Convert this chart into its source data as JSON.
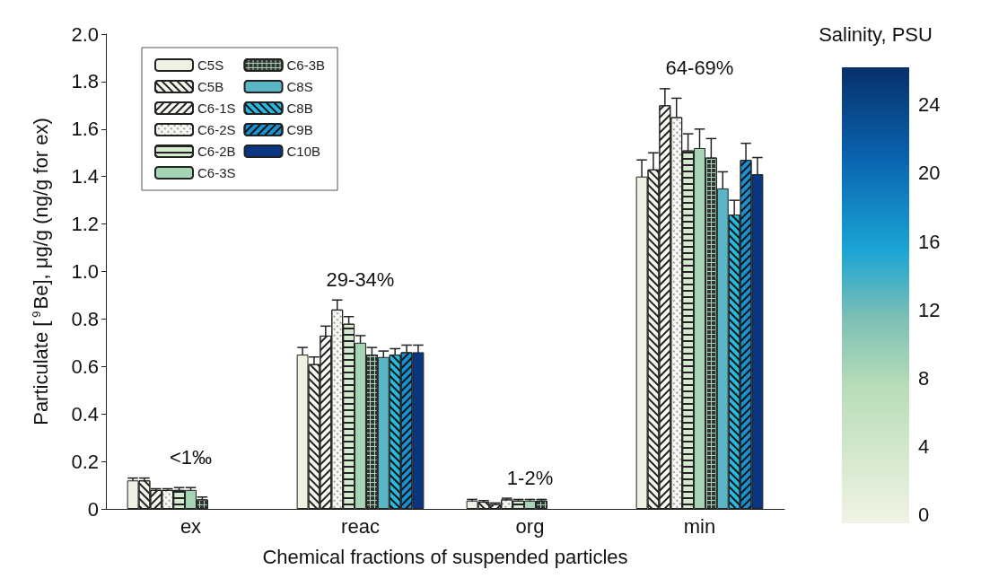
{
  "chart_data": {
    "type": "bar",
    "xlabel": "Chemical fractions of suspended particles",
    "ylabel": "Particulate [$^{9}$Be], μg/g (ng/g for ex)",
    "categories": [
      "ex",
      "reac",
      "org",
      "min"
    ],
    "series": [
      {
        "name": "C5S",
        "color": "#eef2e2",
        "values": [
          0.12,
          0.65,
          0.035,
          1.4
        ],
        "errors": [
          0.01,
          0.03,
          0.005,
          0.07
        ]
      },
      {
        "name": "C5B",
        "color": "#f4f4ec",
        "values": [
          0.12,
          0.61,
          0.03,
          1.43
        ],
        "errors": [
          0.01,
          0.03,
          0.005,
          0.07
        ]
      },
      {
        "name": "C6-1S",
        "color": "#f8f8f4",
        "values": [
          0.08,
          0.73,
          0.02,
          1.7
        ],
        "errors": [
          0.005,
          0.04,
          0.005,
          0.07
        ]
      },
      {
        "name": "C6-2S",
        "color": "#f8f8f4",
        "values": [
          0.08,
          0.84,
          0.04,
          1.65
        ],
        "errors": [
          0.005,
          0.04,
          0.005,
          0.08
        ]
      },
      {
        "name": "C6-2B",
        "color": "#d5ebd0",
        "values": [
          0.08,
          0.78,
          0.035,
          1.51
        ],
        "errors": [
          0.01,
          0.03,
          0.005,
          0.07
        ]
      },
      {
        "name": "C6-3S",
        "color": "#a5d5b5",
        "values": [
          0.08,
          0.7,
          0.035,
          1.52
        ],
        "errors": [
          0.01,
          0.03,
          0.005,
          0.08
        ]
      },
      {
        "name": "C6-3B",
        "color": "#a5d5b5",
        "values": [
          0.04,
          0.65,
          0.035,
          1.48
        ],
        "errors": [
          0.01,
          0.03,
          0.005,
          0.08
        ]
      },
      {
        "name": "C8S",
        "color": "#5ab5c5",
        "values": [
          null,
          0.64,
          null,
          1.35
        ],
        "errors": [
          null,
          0.025,
          null,
          0.07
        ]
      },
      {
        "name": "C8B",
        "color": "#28b8e0",
        "values": [
          null,
          0.65,
          null,
          1.24
        ],
        "errors": [
          null,
          0.025,
          null,
          0.06
        ]
      },
      {
        "name": "C9B",
        "color": "#1a90d0",
        "values": [
          null,
          0.66,
          null,
          1.47
        ],
        "errors": [
          null,
          0.03,
          null,
          0.07
        ]
      },
      {
        "name": "C10B",
        "color": "#0a3580",
        "values": [
          null,
          0.66,
          null,
          1.41
        ],
        "errors": [
          null,
          0.03,
          null,
          0.07
        ]
      }
    ],
    "ylim": [
      0,
      2.0
    ],
    "yticks": [
      {
        "value": 0,
        "label": "0"
      },
      0.2,
      0.4,
      0.6,
      0.8,
      {
        "value": 1.0,
        "label": "1.0"
      },
      1.2,
      1.4,
      1.6,
      1.8,
      {
        "value": 2.0,
        "label": "2.0"
      }
    ],
    "annotations": [
      "<1‰",
      "29-34%",
      "1-2%",
      "64-69%"
    ],
    "legend": "top left",
    "grid": false,
    "clabel": "Salinity, PSU",
    "clim": [
      -0.5,
      26.2
    ],
    "cticks": [
      0,
      4,
      8,
      12,
      16,
      20,
      24
    ]
  }
}
